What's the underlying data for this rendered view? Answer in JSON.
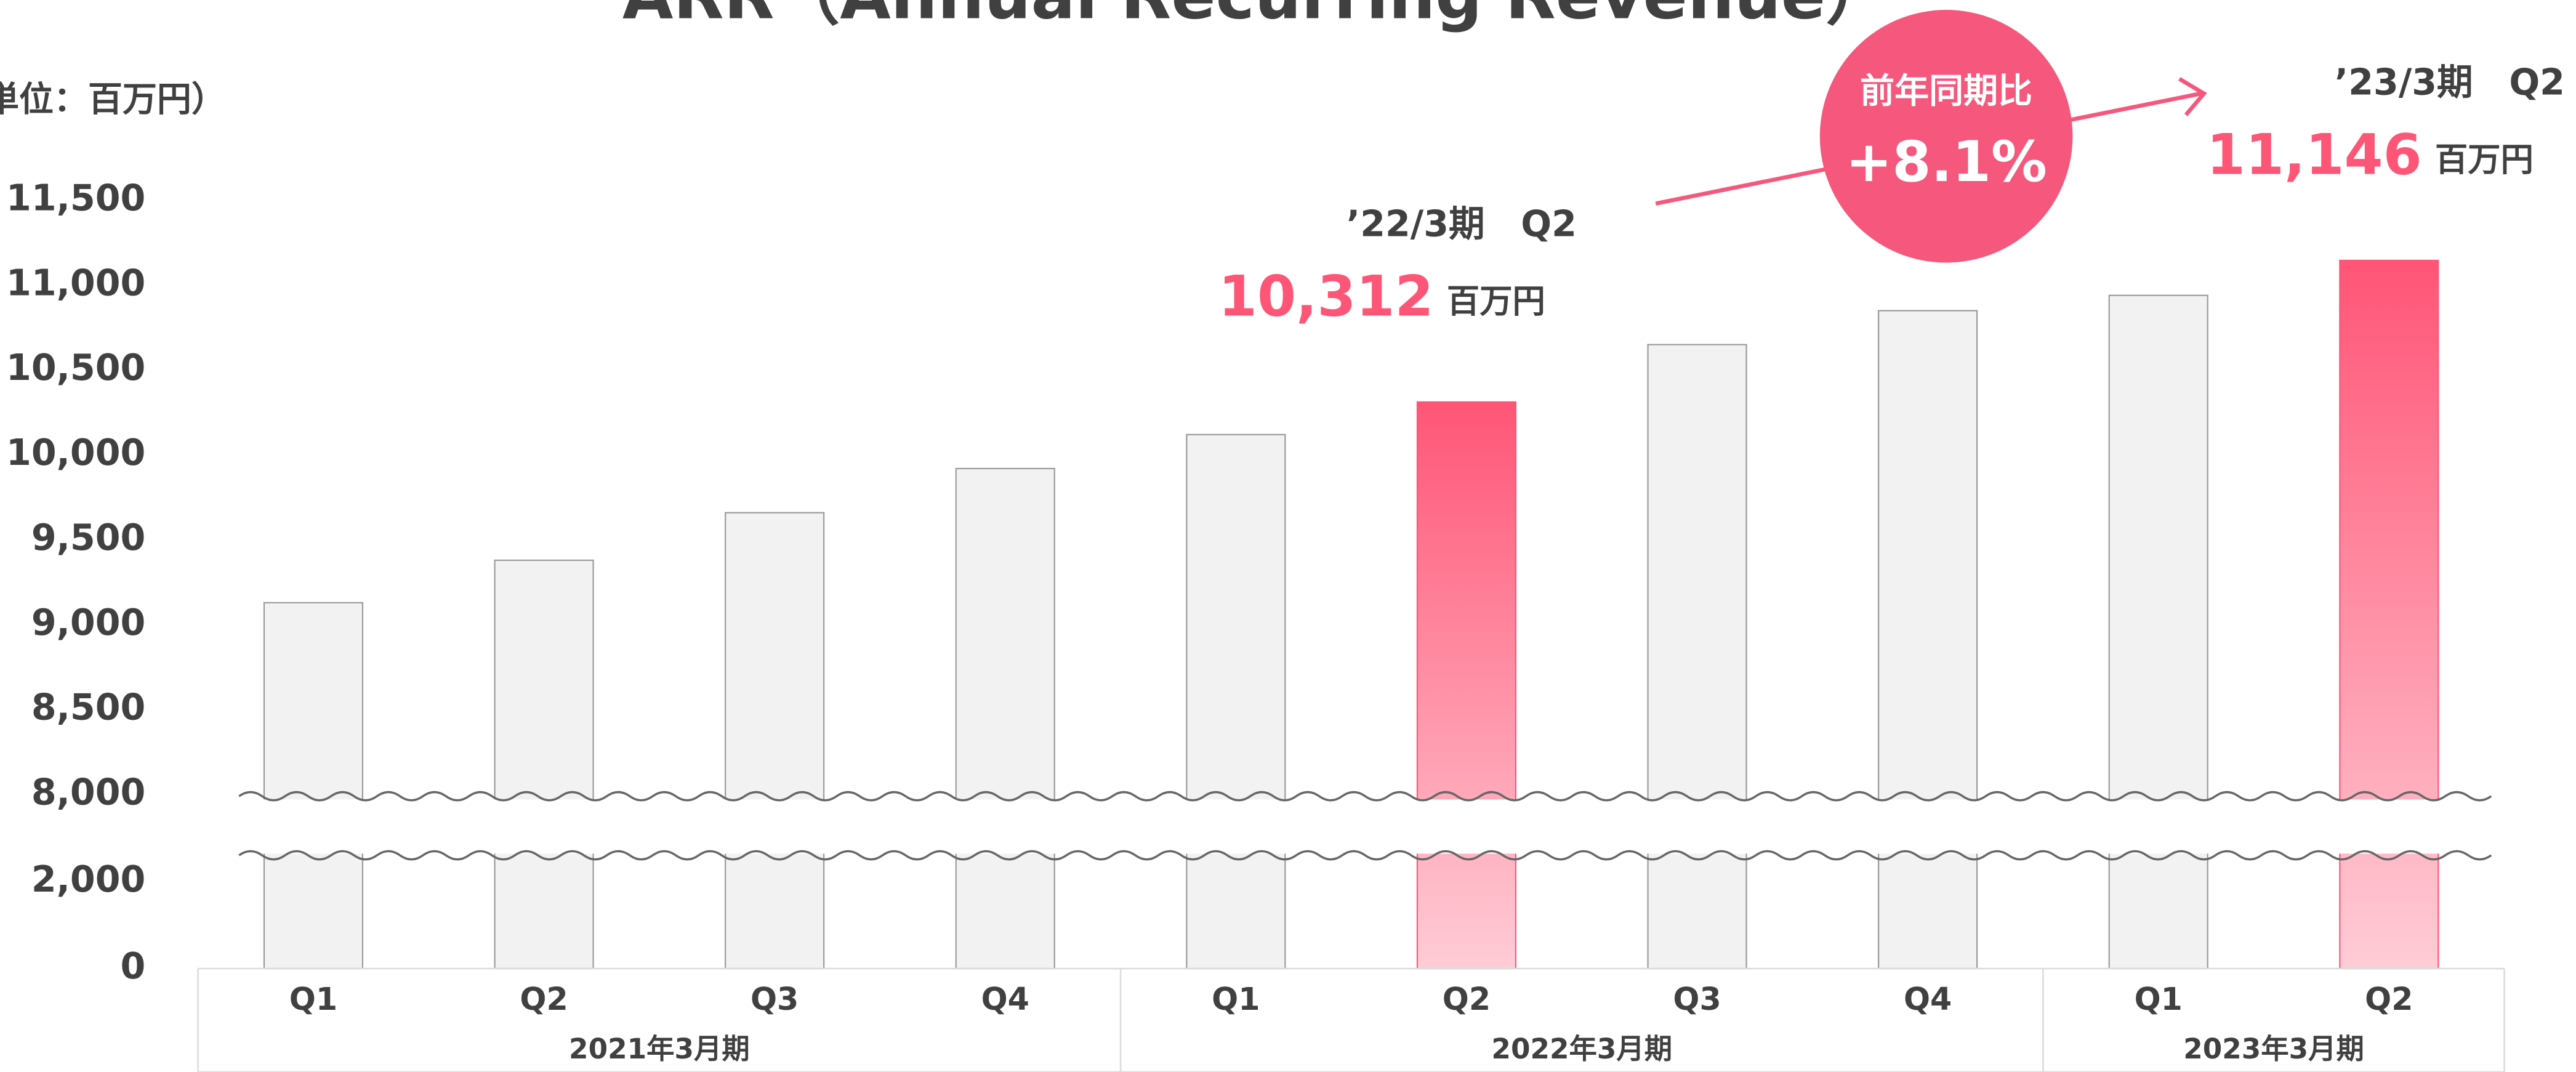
{
  "chart_data": {
    "type": "bar",
    "title": "ARR（Annual Recurring Revenue）",
    "unit_label": "単位：百万円）",
    "categories": [
      "Q1",
      "Q2",
      "Q3",
      "Q4",
      "Q1",
      "Q2",
      "Q3",
      "Q4",
      "Q1",
      "Q2"
    ],
    "groups": [
      {
        "label": "2021年3月期",
        "span": 4
      },
      {
        "label": "2022年3月期",
        "span": 4
      },
      {
        "label": "2023年3月期",
        "span": 2
      }
    ],
    "values": [
      9130,
      9380,
      9660,
      9920,
      10120,
      10312,
      10650,
      10850,
      10940,
      11146
    ],
    "value_labels": [
      null,
      null,
      null,
      null,
      null,
      "10,312",
      null,
      null,
      null,
      "11,146"
    ],
    "colors": [
      "#f2f2f2",
      "#f2f2f2",
      "#f2f2f2",
      "#f2f2f2",
      "#f2f2f2",
      "#ff5576",
      "#f2f2f2",
      "#f2f2f2",
      "#f2f2f2",
      "#ff5576"
    ],
    "gradient_bars": [
      false,
      false,
      false,
      false,
      false,
      true,
      false,
      false,
      false,
      true
    ],
    "ylim": [
      0,
      11500
    ],
    "axis_break": [
      2000,
      8000
    ],
    "yticks": [
      0,
      {
        "value": 2000,
        "label": "2,000"
      },
      {
        "value": 8000,
        "label": "8,000"
      },
      {
        "value": 8500,
        "label": "8,500"
      },
      {
        "value": 9000,
        "label": "9,000"
      },
      {
        "value": 9500,
        "label": "9,500"
      },
      {
        "value": 10000,
        "label": "10,000"
      },
      {
        "value": 10500,
        "label": "10,500"
      },
      {
        "value": 11000,
        "label": "11,000"
      },
      {
        "value": 11500,
        "label": "11,500"
      }
    ],
    "annotations": [
      {
        "label": "’22/3期　Q2",
        "unit": "百万円"
      },
      {
        "label": "’23/3期　Q2",
        "unit": "百万円"
      }
    ],
    "badge": {
      "label": "前年同期比",
      "value": "+8.1%",
      "color": "#f5587c"
    }
  }
}
